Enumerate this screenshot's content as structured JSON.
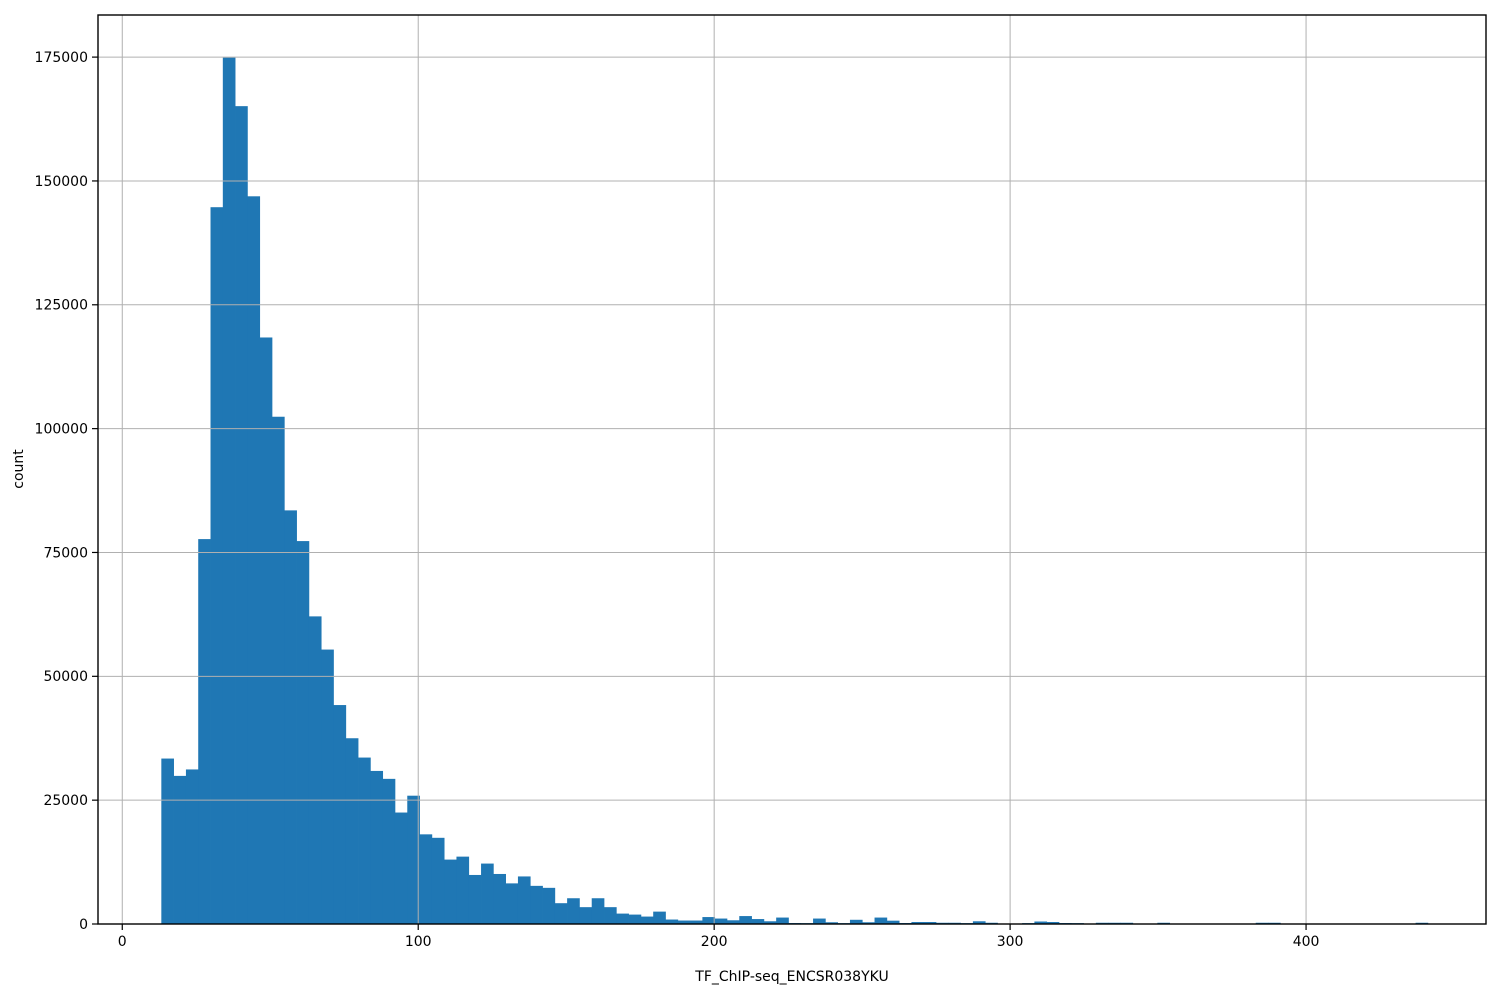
{
  "figure": {
    "background": "#ffffff",
    "bar_color": "#1f77b4",
    "grid_color": "#b0b0b0",
    "spine_color": "#000000",
    "tick_color": "#000000"
  },
  "chart_data": {
    "type": "bar",
    "subtype": "histogram",
    "title": "",
    "xlabel": "TF_ChIP-seq_ENCSR038YKU",
    "ylabel": "count",
    "xlim": [
      -8.2,
      460.8
    ],
    "ylim": [
      0,
      183500
    ],
    "grid": true,
    "grid_above_bars": true,
    "legend_position": "none",
    "x_tick_values": [
      0,
      100,
      200,
      300,
      400
    ],
    "x_tick_labels": [
      "0",
      "100",
      "200",
      "300",
      "400"
    ],
    "y_tick_values": [
      0,
      25000,
      50000,
      75000,
      100000,
      125000,
      150000,
      175000
    ],
    "y_tick_labels": [
      "0",
      "25000",
      "50000",
      "75000",
      "100000",
      "125000",
      "150000",
      "175000"
    ],
    "histogram": {
      "bin_start": 13.2,
      "bin_width": 4.155,
      "counts": [
        33400,
        29900,
        31200,
        77700,
        144700,
        174900,
        165100,
        146900,
        118400,
        102400,
        83500,
        77300,
        62100,
        55400,
        44200,
        37500,
        33600,
        30900,
        29300,
        22500,
        25900,
        18100,
        17400,
        13000,
        13600,
        9900,
        12200,
        10100,
        8200,
        9600,
        7700,
        7300,
        4200,
        5200,
        3400,
        5200,
        3400,
        2100,
        1900,
        1500,
        2500,
        900,
        700,
        700,
        1400,
        1100,
        750,
        1600,
        1000,
        550,
        1300,
        200,
        150,
        1100,
        350,
        100,
        850,
        350,
        1300,
        670,
        200,
        400,
        400,
        250,
        250,
        150,
        550,
        250,
        0,
        0,
        100,
        500,
        400,
        200,
        100,
        0,
        250,
        250,
        250,
        0,
        0,
        250,
        0,
        0,
        0,
        0,
        0,
        0,
        0,
        250,
        250,
        0,
        0,
        0,
        0,
        0,
        0,
        0,
        0,
        0,
        0,
        0,
        250,
        0
      ]
    }
  }
}
